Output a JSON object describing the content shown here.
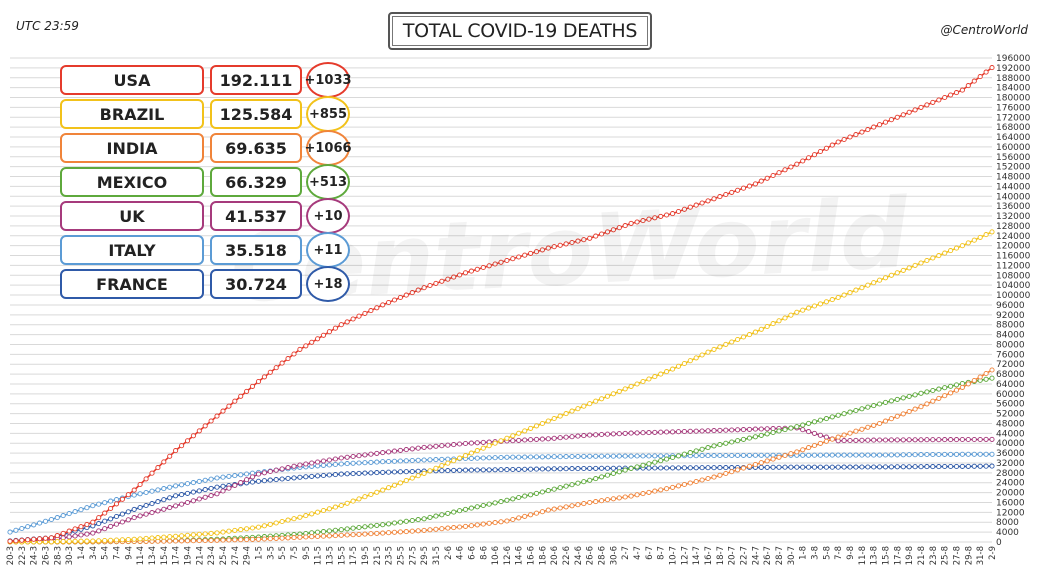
{
  "header": {
    "title": "TOTAL COVID-19 DEATHS",
    "utc": "UTC 23:59",
    "handle": "@CentroWorld",
    "watermark": "CentroWorld"
  },
  "table": [
    {
      "country": "USA",
      "total": "192.111",
      "delta": "+1033",
      "color": "#e53b2c"
    },
    {
      "country": "BRAZIL",
      "total": "125.584",
      "delta": "+855",
      "color": "#f2c21a"
    },
    {
      "country": "INDIA",
      "total": "69.635",
      "delta": "+1066",
      "color": "#f0843a"
    },
    {
      "country": "MEXICO",
      "total": "66.329",
      "delta": "+513",
      "color": "#5ea93c"
    },
    {
      "country": "UK",
      "total": "41.537",
      "delta": "+10",
      "color": "#a63a7c"
    },
    {
      "country": "ITALY",
      "total": "35.518",
      "delta": "+11",
      "color": "#5b9bd5"
    },
    {
      "country": "FRANCE",
      "total": "30.724",
      "delta": "+18",
      "color": "#2f5aa8"
    }
  ],
  "chart_data": {
    "type": "line",
    "title": "TOTAL COVID-19 DEATHS",
    "xlabel": "",
    "ylabel": "",
    "ylim": [
      0,
      196000
    ],
    "ytick_step": 4000,
    "grid": true,
    "x_start": "20-3",
    "x_end": "2-9",
    "x_labels": [
      "20-3",
      "22-3",
      "24-3",
      "26-3",
      "28-3",
      "30-3",
      "1-4",
      "3-4",
      "5-4",
      "7-4",
      "9-4",
      "11-4",
      "13-4",
      "15-4",
      "17-4",
      "19-4",
      "21-4",
      "23-4",
      "25-4",
      "27-4",
      "29-4",
      "1-5",
      "3-5",
      "5-5",
      "7-5",
      "9-5",
      "11-5",
      "13-5",
      "15-5",
      "17-5",
      "19-5",
      "21-5",
      "23-5",
      "25-5",
      "27-5",
      "29-5",
      "31-5",
      "2-6",
      "4-6",
      "6-6",
      "8-6",
      "10-6",
      "12-6",
      "14-6",
      "16-6",
      "18-6",
      "20-6",
      "22-6",
      "24-6",
      "26-6",
      "28-6",
      "30-6",
      "2-7",
      "4-7",
      "6-7",
      "8-7",
      "10-7",
      "12-7",
      "14-7",
      "16-7",
      "18-7",
      "20-7",
      "22-7",
      "24-7",
      "26-7",
      "28-7",
      "30-7",
      "1-8",
      "3-8",
      "5-8",
      "7-8",
      "9-8",
      "11-8",
      "13-8",
      "15-8",
      "17-8",
      "19-8",
      "21-8",
      "23-8",
      "25-8",
      "27-8",
      "29-8",
      "31-8",
      "2-9"
    ],
    "series": [
      {
        "name": "USA",
        "color": "#e53b2c",
        "x": [
          "20-3",
          "27-3",
          "3-4",
          "10-4",
          "17-4",
          "24-4",
          "1-5",
          "8-5",
          "15-5",
          "22-5",
          "29-5",
          "5-6",
          "12-6",
          "19-6",
          "26-6",
          "3-7",
          "10-7",
          "17-7",
          "24-7",
          "31-7",
          "7-8",
          "14-8",
          "21-8",
          "28-8",
          "2-9"
        ],
        "values": [
          300,
          1700,
          8000,
          21000,
          37000,
          51000,
          65000,
          78000,
          88000,
          96000,
          103000,
          109000,
          114000,
          119000,
          123000,
          129000,
          133000,
          139000,
          145000,
          153000,
          162000,
          169000,
          176000,
          183000,
          192111
        ]
      },
      {
        "name": "BRAZIL",
        "color": "#f2c21a",
        "x": [
          "20-3",
          "27-3",
          "3-4",
          "10-4",
          "17-4",
          "24-4",
          "1-5",
          "8-5",
          "15-5",
          "22-5",
          "29-5",
          "5-6",
          "12-6",
          "19-6",
          "26-6",
          "3-7",
          "10-7",
          "17-7",
          "24-7",
          "31-7",
          "7-8",
          "14-8",
          "21-8",
          "28-8",
          "2-9"
        ],
        "values": [
          0,
          100,
          400,
          1100,
          2300,
          3700,
          6000,
          10000,
          14800,
          21000,
          27800,
          35000,
          42000,
          49000,
          56000,
          63000,
          70000,
          78000,
          85000,
          93000,
          99000,
          106000,
          113000,
          120000,
          125584
        ]
      },
      {
        "name": "INDIA",
        "color": "#f0843a",
        "x": [
          "20-3",
          "27-3",
          "3-4",
          "10-4",
          "17-4",
          "24-4",
          "1-5",
          "8-5",
          "15-5",
          "22-5",
          "29-5",
          "5-6",
          "12-6",
          "19-6",
          "26-6",
          "3-7",
          "10-7",
          "17-7",
          "24-7",
          "31-7",
          "7-8",
          "14-8",
          "21-8",
          "28-8",
          "2-9"
        ],
        "values": [
          0,
          0,
          100,
          200,
          400,
          700,
          1100,
          1900,
          2700,
          3600,
          4700,
          6300,
          8500,
          12900,
          16000,
          18600,
          22100,
          26300,
          31400,
          36500,
          42500,
          48000,
          54800,
          62600,
          69635
        ]
      },
      {
        "name": "MEXICO",
        "color": "#5ea93c",
        "x": [
          "20-3",
          "27-3",
          "3-4",
          "10-4",
          "17-4",
          "24-4",
          "1-5",
          "8-5",
          "15-5",
          "22-5",
          "29-5",
          "5-6",
          "12-6",
          "19-6",
          "26-6",
          "3-7",
          "10-7",
          "17-7",
          "24-7",
          "31-7",
          "7-8",
          "14-8",
          "21-8",
          "28-8",
          "2-9"
        ],
        "values": [
          0,
          0,
          50,
          200,
          500,
          1100,
          2000,
          3200,
          5000,
          7000,
          9400,
          13200,
          16900,
          20800,
          25000,
          29800,
          34200,
          38900,
          42600,
          46700,
          51300,
          55900,
          60200,
          64200,
          66329
        ]
      },
      {
        "name": "UK",
        "color": "#a63a7c",
        "x": [
          "20-3",
          "27-3",
          "3-4",
          "10-4",
          "17-4",
          "24-4",
          "1-5",
          "8-5",
          "15-5",
          "22-5",
          "29-5",
          "5-6",
          "12-6",
          "19-6",
          "26-6",
          "3-7",
          "10-7",
          "17-7",
          "24-7",
          "31-7",
          "7-8",
          "14-8",
          "21-8",
          "28-8",
          "2-9"
        ],
        "values": [
          200,
          900,
          3600,
          9900,
          14600,
          19500,
          27500,
          31200,
          34000,
          36200,
          38300,
          39900,
          40900,
          41800,
          43300,
          44100,
          44600,
          45100,
          45700,
          46200,
          41000,
          41300,
          41400,
          41500,
          41537
        ]
      },
      {
        "name": "ITALY",
        "color": "#5b9bd5",
        "x": [
          "20-3",
          "27-3",
          "3-4",
          "10-4",
          "17-4",
          "24-4",
          "1-5",
          "8-5",
          "15-5",
          "22-5",
          "29-5",
          "5-6",
          "12-6",
          "19-6",
          "26-6",
          "3-7",
          "10-7",
          "17-7",
          "24-7",
          "31-7",
          "7-8",
          "14-8",
          "21-8",
          "28-8",
          "2-9"
        ],
        "values": [
          4000,
          9100,
          14700,
          19000,
          22700,
          25900,
          28200,
          30200,
          31600,
          32500,
          33200,
          33800,
          34300,
          34500,
          34700,
          34800,
          34900,
          35000,
          35100,
          35100,
          35200,
          35200,
          35400,
          35500,
          35518
        ]
      },
      {
        "name": "FRANCE",
        "color": "#2f5aa8",
        "x": [
          "20-3",
          "27-3",
          "3-4",
          "10-4",
          "17-4",
          "24-4",
          "1-5",
          "8-5",
          "15-5",
          "22-5",
          "29-5",
          "5-6",
          "12-6",
          "19-6",
          "26-6",
          "3-7",
          "10-7",
          "17-7",
          "24-7",
          "31-7",
          "7-8",
          "14-8",
          "21-8",
          "28-8",
          "2-9"
        ],
        "values": [
          450,
          1700,
          6500,
          13200,
          18700,
          22200,
          24600,
          26200,
          27500,
          28200,
          28700,
          29100,
          29300,
          29600,
          29800,
          29900,
          30000,
          30100,
          30200,
          30300,
          30300,
          30400,
          30500,
          30600,
          30724
        ]
      }
    ]
  }
}
